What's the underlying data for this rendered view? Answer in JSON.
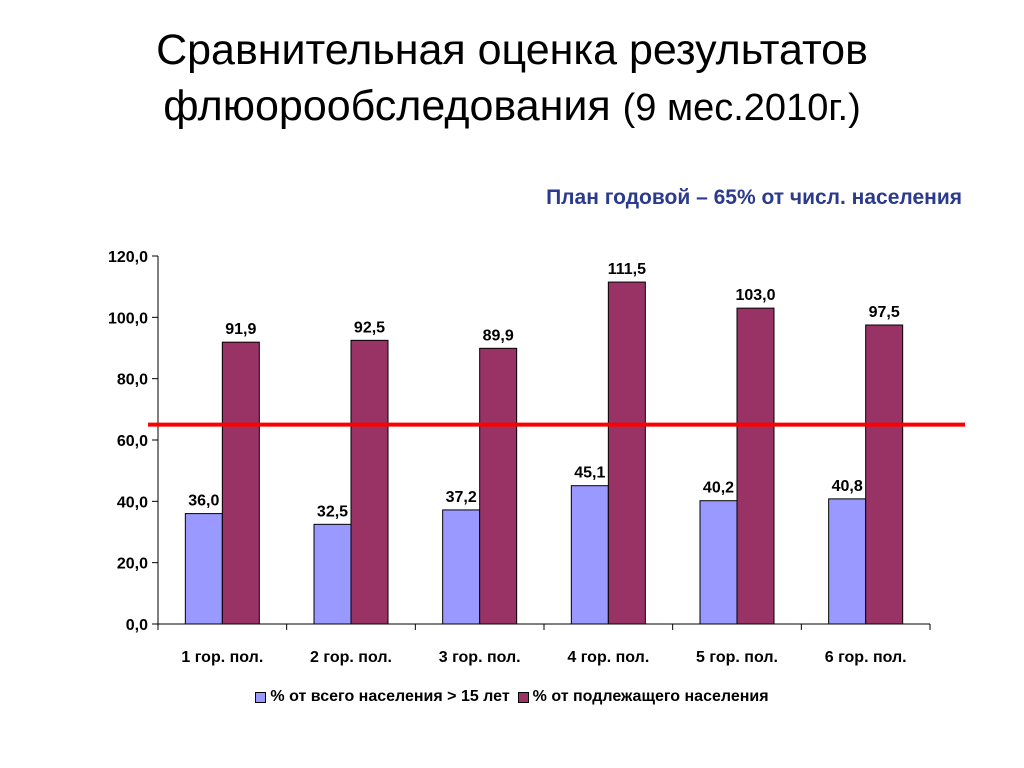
{
  "title": {
    "line1": "Сравнительная оценка результатов",
    "line2_main": "флюорообследования",
    "line2_paren": "(9 мес.2010г.)"
  },
  "plan_note": "План  годовой – 65% от числ. населения",
  "colors": {
    "series1": "#9999ff",
    "series2": "#993366",
    "plan_line": "#ff0000"
  },
  "chart_data": {
    "type": "bar",
    "categories": [
      "1 гор. пол.",
      "2 гор. пол.",
      "3 гор. пол.",
      "4 гор. пол.",
      "5 гор. пол.",
      "6 гор. пол."
    ],
    "series": [
      {
        "name": "% от всего населения > 15 лет",
        "values": [
          36.0,
          32.5,
          37.2,
          45.1,
          40.2,
          40.8
        ],
        "labels": [
          "36,0",
          "32,5",
          "37,2",
          "45,1",
          "40,2",
          "40,8"
        ]
      },
      {
        "name": "% от подлежащего населения",
        "values": [
          91.9,
          92.5,
          89.9,
          111.5,
          103.0,
          97.5
        ],
        "labels": [
          "91,9",
          "92,5",
          "89,9",
          "111,5",
          "103,0",
          "97,5"
        ]
      }
    ],
    "ylim": [
      0,
      120
    ],
    "yticks": [
      0,
      20,
      40,
      60,
      80,
      100,
      120
    ],
    "ytick_labels": [
      "0,0",
      "20,0",
      "40,0",
      "60,0",
      "80,0",
      "100,0",
      "120,0"
    ],
    "reference_line": 65,
    "legend_position": "bottom",
    "grid": false
  }
}
